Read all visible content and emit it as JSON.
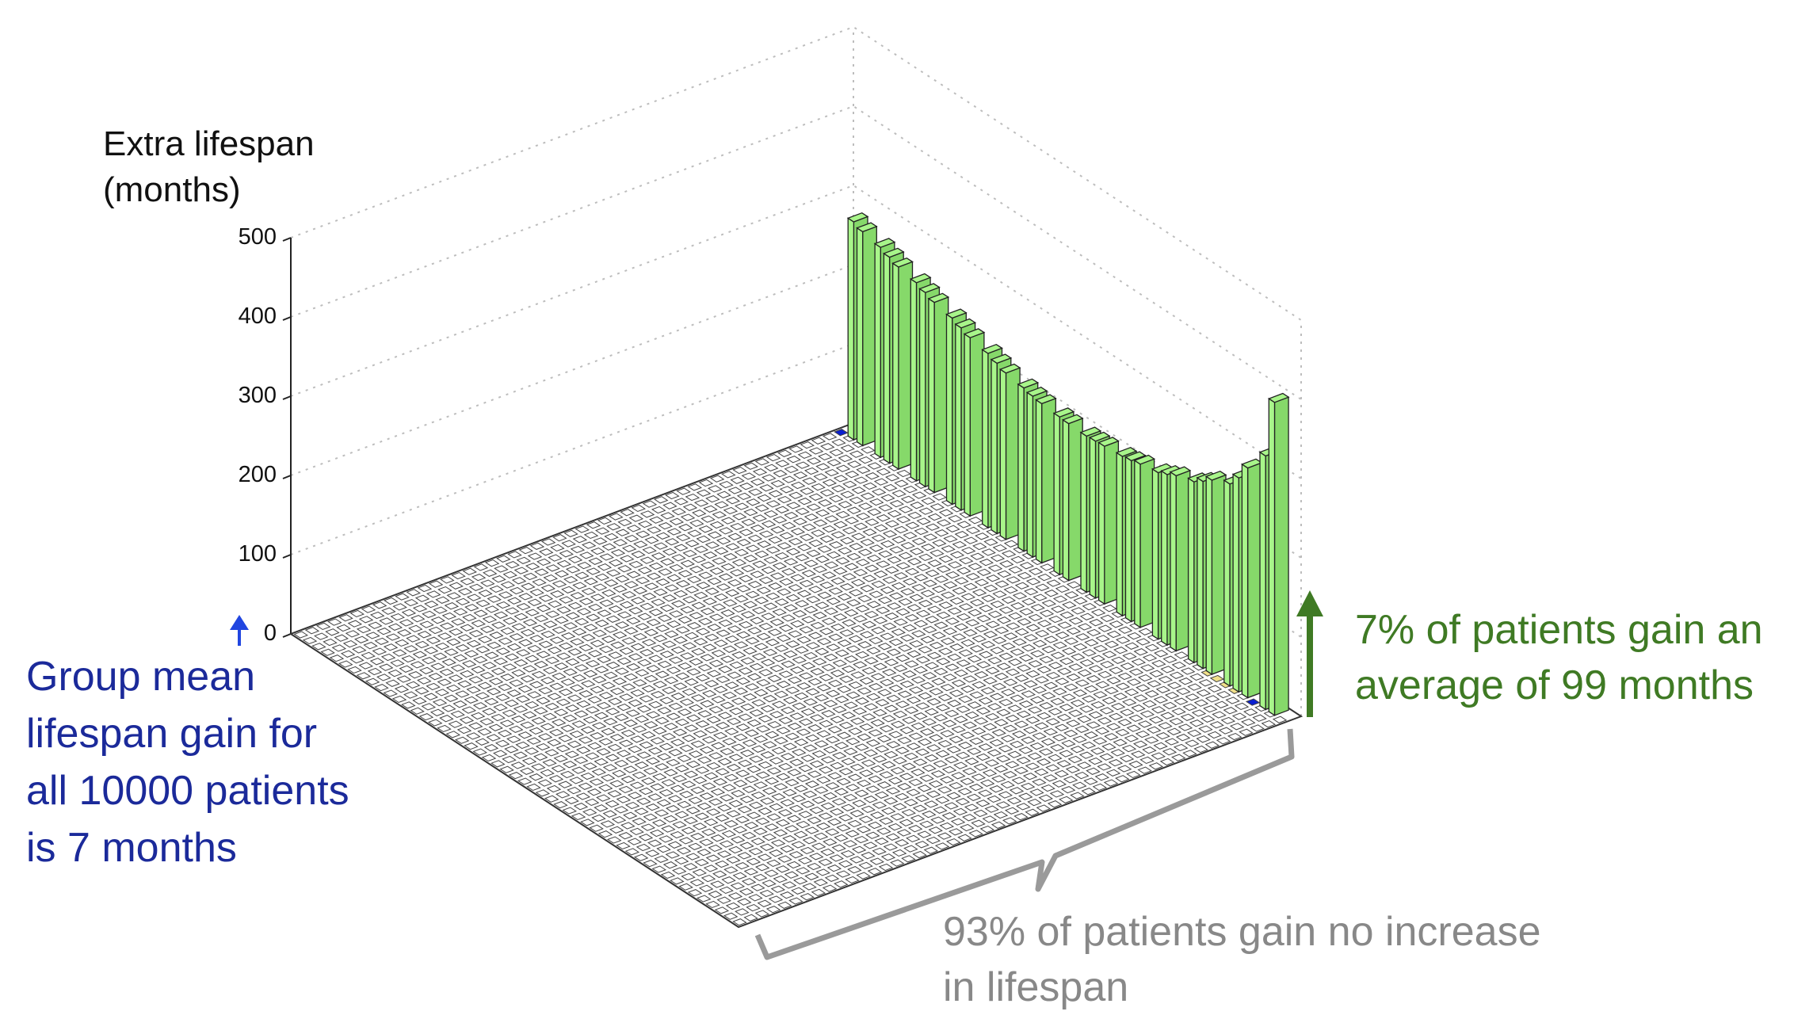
{
  "chart_data": {
    "type": "bar3d",
    "ylabel_line1": "Extra lifespan",
    "ylabel_line2": "(months)",
    "zticks": [
      "500",
      "400",
      "300",
      "200",
      "100",
      "0"
    ],
    "zlim": [
      0,
      500
    ],
    "grid": true,
    "grid_size": [
      50,
      50
    ],
    "benefit_bar_values_months": [
      275,
      270,
      265,
      260,
      255,
      250,
      245,
      240,
      235,
      230,
      225,
      220,
      215,
      210,
      206,
      203,
      201,
      199,
      198,
      197,
      198,
      199,
      201,
      203,
      206,
      210,
      215,
      221,
      228,
      236,
      245,
      255,
      270,
      290,
      320,
      395
    ],
    "colors": {
      "zero_bar": "#ffffff",
      "benefit_bar": "#a8f58a",
      "benefit_bar_side": "#86d96a",
      "marker_blue": "#0a1fd0",
      "marker_yellow": "#f1e08a",
      "grid_line": "#bdbdbd",
      "mean_arrow": "#2146e0",
      "subgroup_arrow": "#3f7a24",
      "brace": "#9a9a9a"
    }
  },
  "annotations": {
    "mean_line1": "Group mean",
    "mean_line2": "lifespan gain for",
    "mean_line3": "all 10000 patients",
    "mean_line4": "is 7 months",
    "responders_line1": "7% of patients gain an",
    "responders_line2": "average of 99 months",
    "nonresponders_line1": "93% of patients gain no increase",
    "nonresponders_line2": "in lifespan"
  }
}
